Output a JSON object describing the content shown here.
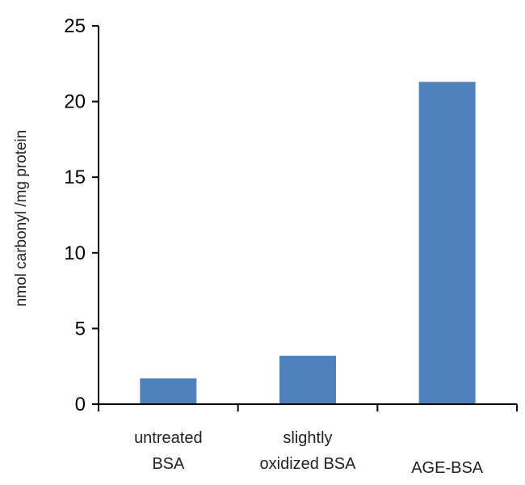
{
  "chart_data": {
    "type": "bar",
    "categories": [
      [
        "untreated",
        "BSA"
      ],
      [
        "slightly",
        "oxidized BSA"
      ],
      [
        "AGE-BSA"
      ]
    ],
    "category_keys": [
      "untreated BSA",
      "slightly oxidized BSA",
      "AGE-BSA"
    ],
    "values": [
      1.7,
      3.2,
      21.3
    ],
    "ylabel": "nmol carbonyl /mg protein",
    "xlabel": "",
    "ylim": [
      0,
      25
    ],
    "yticks": [
      0,
      5,
      10,
      15,
      20,
      25
    ],
    "grid": false,
    "legend": "none",
    "bar_color": "#4F81BD",
    "axis_color": "#000000"
  }
}
